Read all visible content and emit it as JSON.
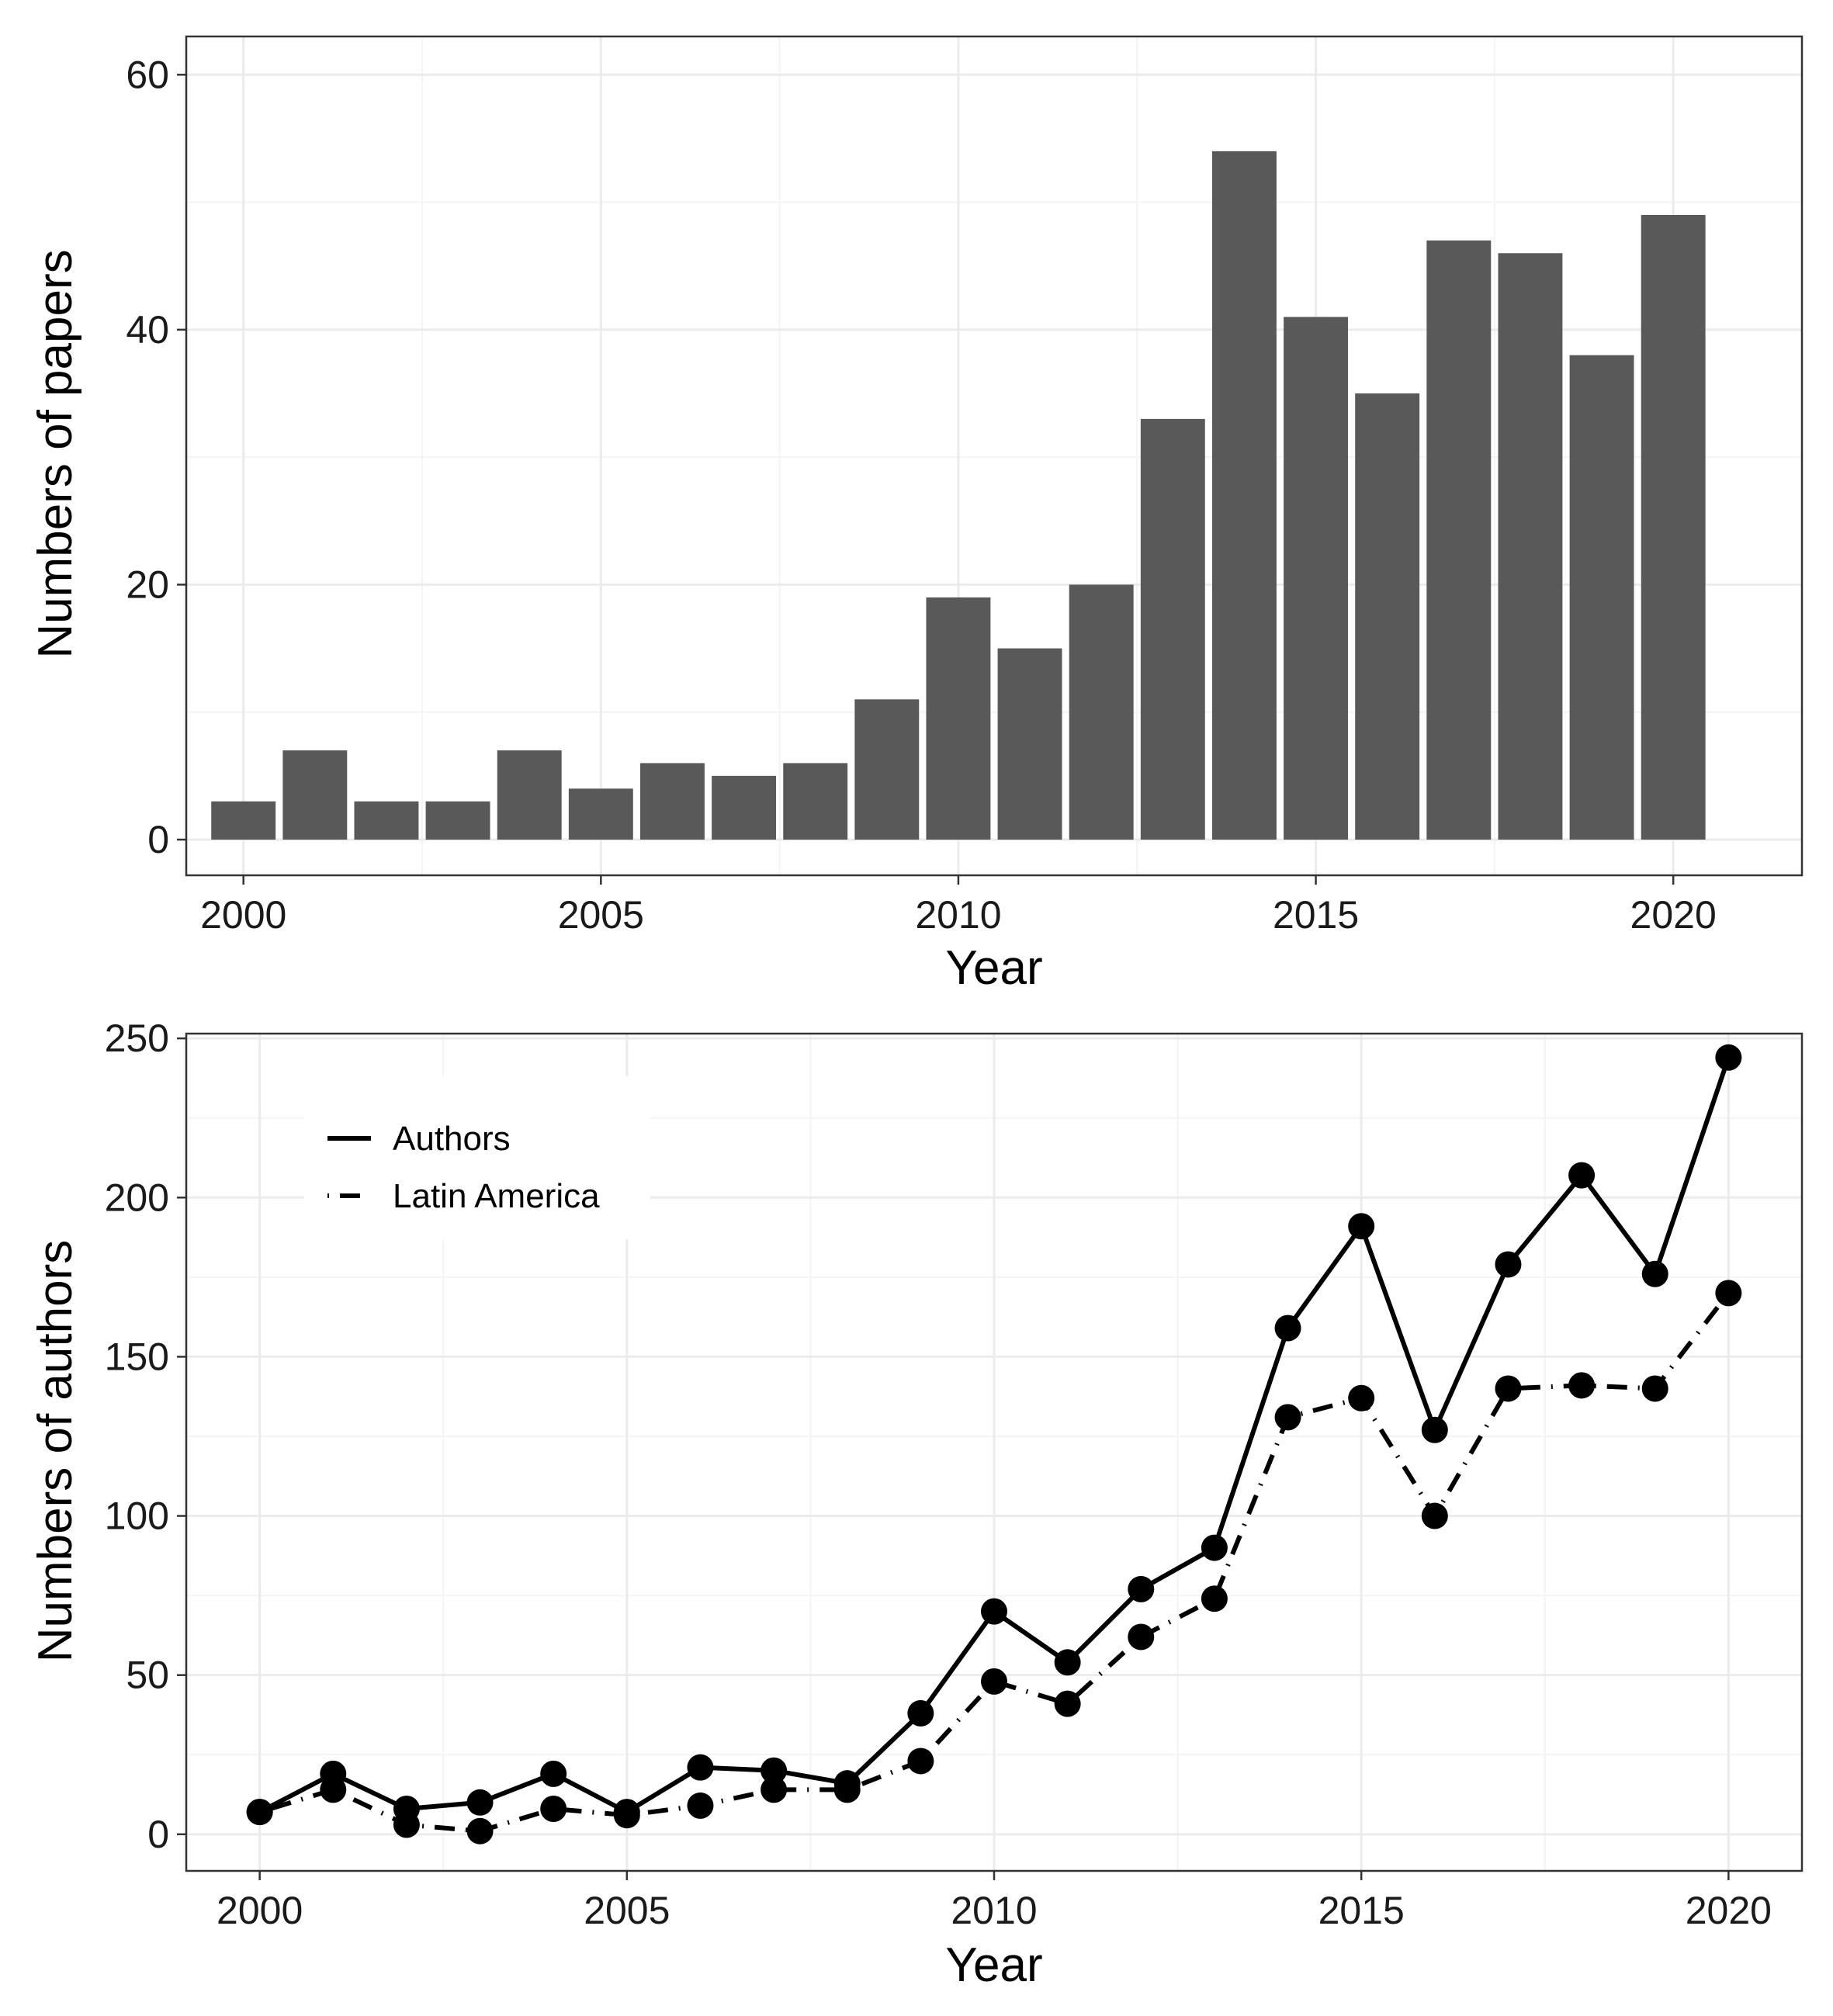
{
  "colors": {
    "bar": "#595959",
    "line": "#000000",
    "grid_major": "#ebebeb",
    "grid_minor": "#f4f4f4",
    "panel_border": "#333333",
    "background": "#ffffff"
  },
  "chart_data": [
    {
      "type": "bar",
      "title": "",
      "xlabel": "Year",
      "ylabel": "Numbers of papers",
      "x": [
        2000,
        2001,
        2002,
        2003,
        2004,
        2005,
        2006,
        2007,
        2008,
        2009,
        2010,
        2011,
        2012,
        2013,
        2014,
        2015,
        2016,
        2017,
        2018,
        2019,
        2020
      ],
      "values": [
        3,
        7,
        3,
        3,
        7,
        4,
        6,
        5,
        6,
        11,
        19,
        15,
        20,
        33,
        54,
        41,
        35,
        47,
        46,
        38,
        49
      ],
      "xlim": [
        1999.2,
        2021.8
      ],
      "ylim": [
        -2.8,
        63
      ],
      "xticks": [
        2000,
        2005,
        2010,
        2015,
        2020
      ],
      "xtick_labels": [
        "2000",
        "2005",
        "2010",
        "2015",
        "2020"
      ],
      "yticks": [
        0,
        20,
        40,
        60
      ],
      "ytick_labels": [
        "0",
        "20",
        "40",
        "60"
      ],
      "grid": true,
      "legend": false
    },
    {
      "type": "line",
      "title": "",
      "xlabel": "Year",
      "ylabel": "Numbers of authors",
      "x": [
        2000,
        2001,
        2002,
        2003,
        2004,
        2005,
        2006,
        2007,
        2008,
        2009,
        2010,
        2011,
        2012,
        2013,
        2014,
        2015,
        2016,
        2017,
        2018,
        2019,
        2020
      ],
      "series": [
        {
          "name": "Authors",
          "line_style": "solid",
          "markers": true,
          "values": [
            7,
            19,
            8,
            10,
            19,
            7,
            21,
            20,
            16,
            38,
            70,
            54,
            77,
            90,
            159,
            191,
            127,
            179,
            207,
            176,
            244
          ]
        },
        {
          "name": "Latin America",
          "line_style": "dotdash",
          "markers": true,
          "values": [
            7,
            14,
            3,
            1,
            8,
            6,
            9,
            14,
            14,
            23,
            48,
            41,
            62,
            74,
            131,
            137,
            100,
            140,
            141,
            140,
            170
          ]
        }
      ],
      "xlim": [
        1999.0,
        2021.0
      ],
      "ylim": [
        -11.5,
        251.5
      ],
      "xticks": [
        2000,
        2005,
        2010,
        2015,
        2020
      ],
      "xtick_labels": [
        "2000",
        "2005",
        "2010",
        "2015",
        "2020"
      ],
      "yticks": [
        0,
        50,
        100,
        150,
        200,
        250
      ],
      "ytick_labels": [
        "0",
        "50",
        "100",
        "150",
        "200",
        "250"
      ],
      "grid": true,
      "legend_position": "top-left"
    }
  ]
}
